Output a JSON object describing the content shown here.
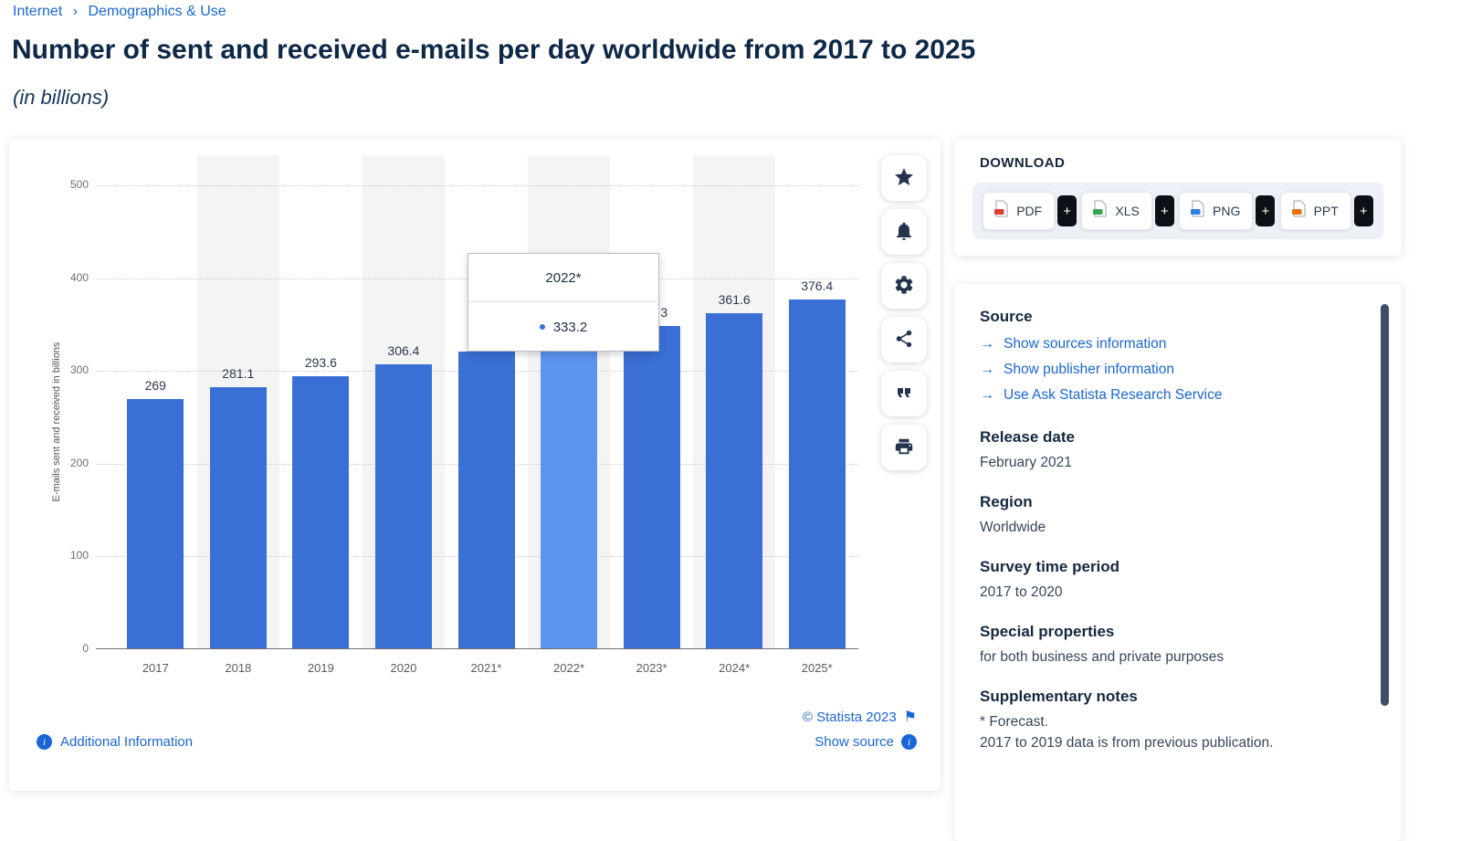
{
  "breadcrumb": {
    "items": [
      "Internet",
      "Demographics & Use"
    ],
    "separator": "›"
  },
  "header": {
    "title": "Number of sent and received e-mails per day worldwide from 2017 to 2025",
    "subtitle": "(in billions)"
  },
  "chart_data": {
    "type": "bar",
    "categories": [
      "2017",
      "2018",
      "2019",
      "2020",
      "2021*",
      "2022*",
      "2023*",
      "2024*",
      "2025*"
    ],
    "values": [
      269,
      281.1,
      293.6,
      306.4,
      319.6,
      333.2,
      347.3,
      361.6,
      376.4
    ],
    "value_labels": [
      "269",
      "281.1",
      "293.6",
      "306.4",
      "319.6",
      "333.2",
      "347.3",
      "361.6",
      "376.4"
    ],
    "title": "Number of sent and received e-mails per day worldwide from 2017 to 2025 (in billions)",
    "xlabel": "",
    "ylabel": "E-mails sent and received in billions",
    "ylim": [
      0,
      500
    ],
    "yticks": [
      0,
      100,
      200,
      300,
      400,
      500
    ],
    "grid": "horizontal-dotted",
    "legend": "none",
    "highlight_index": 5,
    "bar_color": "#3a6fd6",
    "highlight_color": "#5b93ee"
  },
  "tooltip": {
    "title": "2022*",
    "value": "333.2"
  },
  "chart_footer": {
    "additional_info": "Additional Information",
    "copyright": "© Statista 2023",
    "show_source": "Show source"
  },
  "toolbar": {
    "icons": [
      "star",
      "bell",
      "gear",
      "share",
      "quote",
      "printer"
    ]
  },
  "download": {
    "label": "DOWNLOAD",
    "plus": "+",
    "buttons": [
      {
        "label": "PDF",
        "color": "#e03c31"
      },
      {
        "label": "XLS",
        "color": "#3aa655"
      },
      {
        "label": "PNG",
        "color": "#2f7de1"
      },
      {
        "label": "PPT",
        "color": "#e8710a"
      }
    ]
  },
  "details": {
    "source": {
      "heading": "Source",
      "links": [
        "Show sources information",
        "Show publisher information",
        "Use Ask Statista Research Service"
      ]
    },
    "sections": [
      {
        "heading": "Release date",
        "lines": [
          "February 2021"
        ]
      },
      {
        "heading": "Region",
        "lines": [
          "Worldwide"
        ]
      },
      {
        "heading": "Survey time period",
        "lines": [
          "2017 to 2020"
        ]
      },
      {
        "heading": "Special properties",
        "lines": [
          "for both business and private purposes"
        ]
      },
      {
        "heading": "Supplementary notes",
        "lines": [
          "* Forecast.",
          "2017 to 2019 data is from previous publication."
        ]
      }
    ]
  }
}
